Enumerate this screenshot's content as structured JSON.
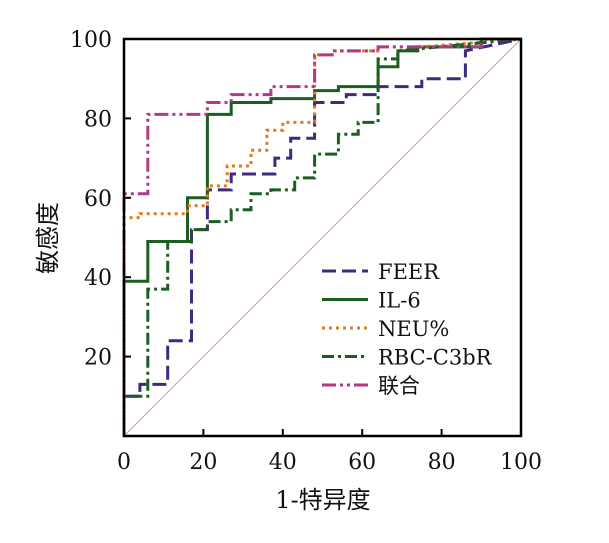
{
  "chart_data": {
    "type": "line",
    "title": "",
    "xlabel": "1-特异度",
    "ylabel": "敏感度",
    "xlim": [
      0,
      100
    ],
    "ylim": [
      0,
      100
    ],
    "x_ticks": [
      0,
      20,
      40,
      60,
      80,
      100
    ],
    "y_ticks": [
      20,
      40,
      60,
      80,
      100
    ],
    "grid": false,
    "legend_position": "bottom-right",
    "reference_line": {
      "points": [
        [
          0,
          0
        ],
        [
          100,
          100
        ]
      ],
      "color": "#c9a79e"
    },
    "series": [
      {
        "name": "FEER",
        "color": "#3f2a80",
        "dash": "14 6",
        "points": [
          [
            0,
            0
          ],
          [
            0,
            10
          ],
          [
            4,
            10
          ],
          [
            4,
            13
          ],
          [
            11,
            13
          ],
          [
            11,
            24
          ],
          [
            17,
            24
          ],
          [
            17,
            52
          ],
          [
            21,
            52
          ],
          [
            21,
            62
          ],
          [
            27,
            62
          ],
          [
            27,
            66
          ],
          [
            38,
            66
          ],
          [
            38,
            70
          ],
          [
            42,
            70
          ],
          [
            42,
            75
          ],
          [
            48,
            75
          ],
          [
            48,
            84
          ],
          [
            56,
            84
          ],
          [
            56,
            86
          ],
          [
            64,
            86
          ],
          [
            64,
            88
          ],
          [
            75,
            88
          ],
          [
            75,
            90
          ],
          [
            86,
            90
          ],
          [
            86,
            97
          ],
          [
            100,
            100
          ]
        ]
      },
      {
        "name": "IL-6",
        "color": "#1b5e20",
        "dash": "",
        "points": [
          [
            0,
            0
          ],
          [
            0,
            39
          ],
          [
            6,
            39
          ],
          [
            6,
            49
          ],
          [
            16,
            49
          ],
          [
            16,
            60
          ],
          [
            21,
            60
          ],
          [
            21,
            81
          ],
          [
            27,
            81
          ],
          [
            27,
            84
          ],
          [
            37,
            84
          ],
          [
            37,
            85
          ],
          [
            48,
            85
          ],
          [
            48,
            87
          ],
          [
            54,
            87
          ],
          [
            54,
            88
          ],
          [
            64,
            88
          ],
          [
            64,
            93
          ],
          [
            69,
            93
          ],
          [
            69,
            97
          ],
          [
            74,
            97
          ],
          [
            74,
            98
          ],
          [
            90,
            98
          ],
          [
            90,
            100
          ],
          [
            100,
            100
          ]
        ]
      },
      {
        "name": "NEU%",
        "color": "#e07a1f",
        "dash": "3 4",
        "points": [
          [
            0,
            0
          ],
          [
            0,
            55
          ],
          [
            4,
            55
          ],
          [
            4,
            56
          ],
          [
            16,
            56
          ],
          [
            16,
            58
          ],
          [
            21,
            58
          ],
          [
            21,
            63
          ],
          [
            26,
            63
          ],
          [
            26,
            68
          ],
          [
            32,
            68
          ],
          [
            32,
            72
          ],
          [
            36,
            72
          ],
          [
            36,
            77
          ],
          [
            40,
            77
          ],
          [
            40,
            79
          ],
          [
            48,
            79
          ],
          [
            48,
            96
          ],
          [
            53,
            96
          ],
          [
            53,
            97
          ],
          [
            64,
            97
          ],
          [
            64,
            98
          ],
          [
            75,
            98
          ],
          [
            75,
            98
          ],
          [
            100,
            100
          ]
        ]
      },
      {
        "name": "RBC-C3bR",
        "color": "#1b5e20",
        "dash": "12 4 3 4",
        "points": [
          [
            0,
            0
          ],
          [
            0,
            10
          ],
          [
            6,
            10
          ],
          [
            6,
            37
          ],
          [
            11,
            37
          ],
          [
            11,
            49
          ],
          [
            17,
            49
          ],
          [
            17,
            52
          ],
          [
            21,
            52
          ],
          [
            21,
            54
          ],
          [
            27,
            54
          ],
          [
            27,
            57
          ],
          [
            32,
            57
          ],
          [
            32,
            61
          ],
          [
            37,
            61
          ],
          [
            37,
            62
          ],
          [
            43,
            62
          ],
          [
            43,
            65
          ],
          [
            48,
            65
          ],
          [
            48,
            71
          ],
          [
            54,
            71
          ],
          [
            54,
            76
          ],
          [
            59,
            76
          ],
          [
            59,
            79
          ],
          [
            64,
            79
          ],
          [
            64,
            95
          ],
          [
            69,
            95
          ],
          [
            69,
            97
          ],
          [
            100,
            100
          ]
        ]
      },
      {
        "name": "联合",
        "color": "#b03a8a",
        "dash": "14 4 3 4 3 4",
        "points": [
          [
            0,
            0
          ],
          [
            0,
            61
          ],
          [
            6,
            61
          ],
          [
            6,
            81
          ],
          [
            21,
            81
          ],
          [
            21,
            84
          ],
          [
            27,
            84
          ],
          [
            27,
            86
          ],
          [
            37,
            86
          ],
          [
            37,
            88
          ],
          [
            48,
            88
          ],
          [
            48,
            96
          ],
          [
            53,
            96
          ],
          [
            53,
            97
          ],
          [
            64,
            97
          ],
          [
            64,
            98
          ],
          [
            90,
            98
          ],
          [
            90,
            100
          ],
          [
            100,
            100
          ]
        ]
      }
    ]
  }
}
